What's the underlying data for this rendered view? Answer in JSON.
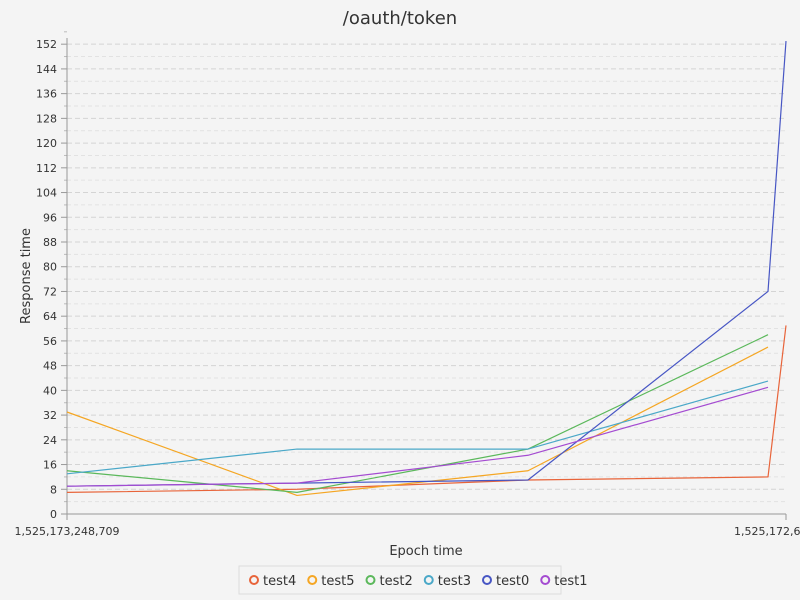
{
  "chart_data": {
    "type": "line",
    "title": "/oauth/token",
    "xlabel": "Epoch time",
    "ylabel": "Response time",
    "x_tick_labels": [
      "1,525,173,248,709",
      "1,525,172,6"
    ],
    "ylim": [
      0,
      154
    ],
    "y_ticks": [
      0,
      8,
      16,
      24,
      32,
      40,
      48,
      56,
      64,
      72,
      80,
      88,
      96,
      104,
      112,
      120,
      128,
      136,
      144,
      152
    ],
    "grid": true,
    "legend_position": "bottom",
    "x_points": 5,
    "series": [
      {
        "name": "test4",
        "color": "#e8643a",
        "values": [
          7,
          8,
          11,
          12,
          61
        ]
      },
      {
        "name": "test5",
        "color": "#f5a623",
        "values": [
          33,
          6,
          14,
          54
        ]
      },
      {
        "name": "test2",
        "color": "#5bb85b",
        "values": [
          14,
          7,
          21,
          58
        ]
      },
      {
        "name": "test3",
        "color": "#4aa8c8",
        "values": [
          13,
          21,
          21,
          43
        ]
      },
      {
        "name": "test0",
        "color": "#4756c4",
        "values": [
          9,
          10,
          11,
          72,
          153
        ]
      },
      {
        "name": "test1",
        "color": "#a44bd1",
        "values": [
          9,
          10,
          19,
          41
        ]
      }
    ]
  }
}
